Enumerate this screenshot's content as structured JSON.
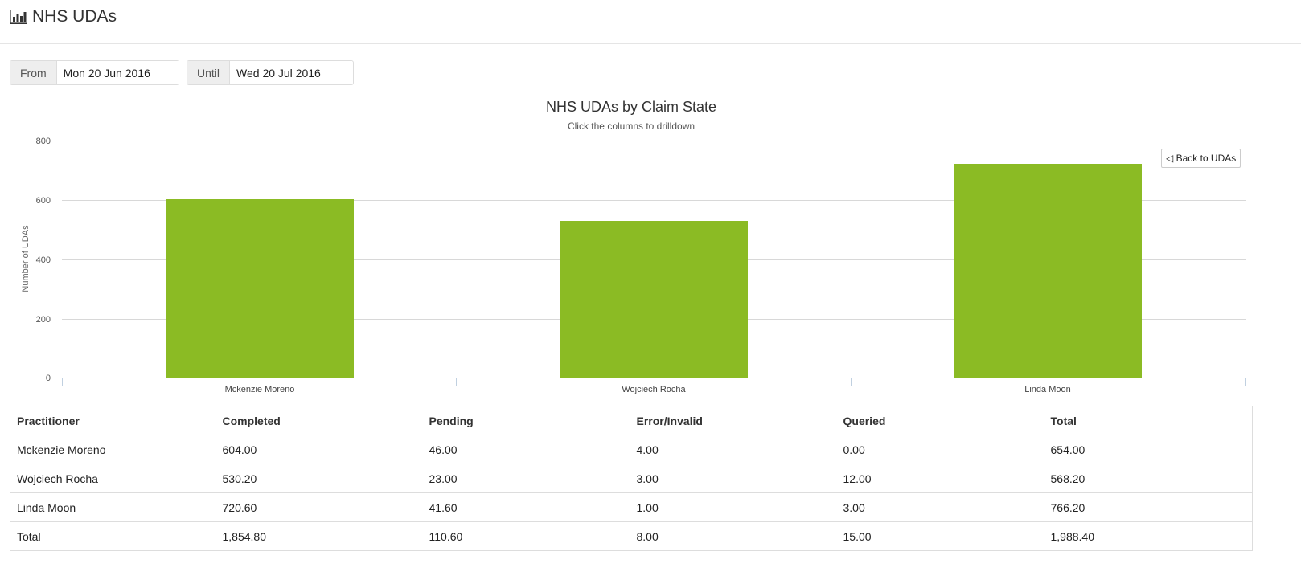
{
  "header": {
    "title": "NHS UDAs",
    "icon": "bar-chart-icon"
  },
  "filters": {
    "from": {
      "label": "From",
      "value": "Mon 20 Jun 2016"
    },
    "until": {
      "label": "Until",
      "value": "Wed 20 Jul 2016"
    }
  },
  "chart": {
    "title": "NHS UDAs by Claim State",
    "subtitle": "Click the columns to drilldown",
    "back_button": "◁ Back to UDAs",
    "yaxis_label": "Number of UDAs",
    "yticks": [
      "800",
      "600",
      "400",
      "200",
      "0"
    ],
    "bar_color": "#8bbb24"
  },
  "chart_data": {
    "type": "bar",
    "title": "NHS UDAs by Claim State",
    "subtitle": "Click the columns to drilldown",
    "categories": [
      "Mckenzie Moreno",
      "Wojciech Rocha",
      "Linda Moon"
    ],
    "values": [
      604.0,
      530.2,
      720.6
    ],
    "xlabel": "",
    "ylabel": "Number of UDAs",
    "ylim": [
      0,
      800
    ],
    "yticks": [
      0,
      200,
      400,
      600,
      800
    ],
    "grid": true,
    "legend": null,
    "color": "#8bbb24"
  },
  "table": {
    "headers": [
      "Practitioner",
      "Completed",
      "Pending",
      "Error/Invalid",
      "Queried",
      "Total"
    ],
    "rows": [
      [
        "Mckenzie Moreno",
        "604.00",
        "46.00",
        "4.00",
        "0.00",
        "654.00"
      ],
      [
        "Wojciech Rocha",
        "530.20",
        "23.00",
        "3.00",
        "12.00",
        "568.20"
      ],
      [
        "Linda Moon",
        "720.60",
        "41.60",
        "1.00",
        "3.00",
        "766.20"
      ],
      [
        "Total",
        "1,854.80",
        "110.60",
        "8.00",
        "15.00",
        "1,988.40"
      ]
    ]
  }
}
